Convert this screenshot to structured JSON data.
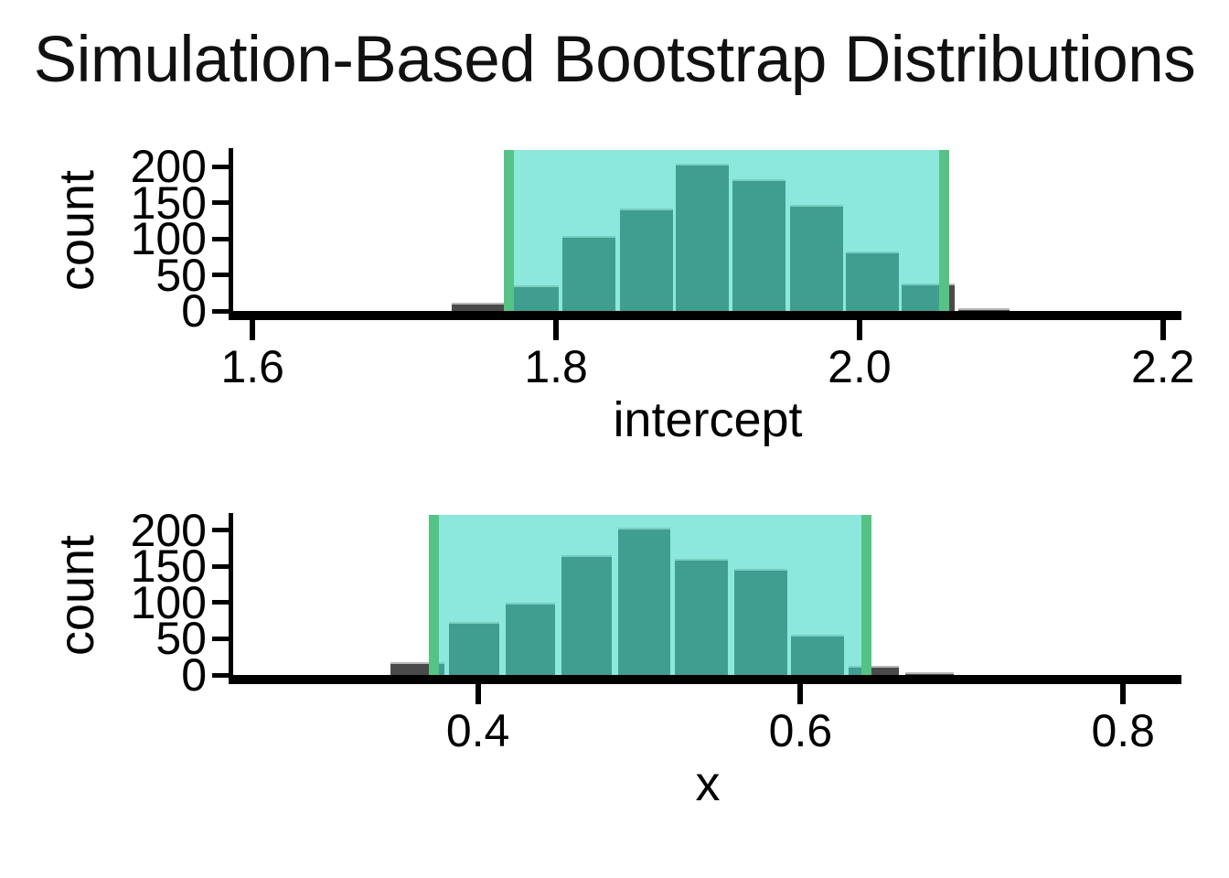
{
  "title": "Simulation-Based Bootstrap Distributions",
  "colors": {
    "bar_gray": "#4a4a4a",
    "bar_border_gray": "#b9b9b9",
    "bar_teal": "#3f9e90",
    "bar_border_teal": "#79cdbf",
    "ci_shade": "#8ce8dc",
    "ci_line_green": "#56c386",
    "axis_black": "#000000"
  },
  "chart_data": [
    {
      "type": "bar",
      "variable": "intercept",
      "xlabel": "intercept",
      "ylabel": "count",
      "xlim": [
        1.589,
        2.211
      ],
      "ylim": [
        0,
        223
      ],
      "grid": false,
      "legend": false,
      "x_ticks": [
        {
          "v": 1.6,
          "label": "1.6"
        },
        {
          "v": 1.8,
          "label": "1.8"
        },
        {
          "v": 2.0,
          "label": "2.0"
        },
        {
          "v": 2.2,
          "label": "2.2"
        }
      ],
      "y_ticks": [
        {
          "v": 0,
          "label": "0"
        },
        {
          "v": 50,
          "label": "50"
        },
        {
          "v": 100,
          "label": "100"
        },
        {
          "v": 150,
          "label": "150"
        },
        {
          "v": 200,
          "label": "200"
        }
      ],
      "bins": [
        {
          "x0": 1.731,
          "x1": 1.766,
          "count": 12
        },
        {
          "x0": 1.767,
          "x1": 1.802,
          "count": 35
        },
        {
          "x0": 1.804,
          "x1": 1.839,
          "count": 104
        },
        {
          "x0": 1.842,
          "x1": 1.877,
          "count": 142
        },
        {
          "x0": 1.879,
          "x1": 1.914,
          "count": 204
        },
        {
          "x0": 1.916,
          "x1": 1.951,
          "count": 182
        },
        {
          "x0": 1.954,
          "x1": 1.989,
          "count": 147
        },
        {
          "x0": 1.991,
          "x1": 2.026,
          "count": 82
        },
        {
          "x0": 2.028,
          "x1": 2.063,
          "count": 38
        },
        {
          "x0": 2.065,
          "x1": 2.099,
          "count": 3
        }
      ],
      "confidence_interval": [
        1.769,
        2.056
      ]
    },
    {
      "type": "bar",
      "variable": "x",
      "xlabel": "x",
      "ylabel": "count",
      "xlim": [
        0.25,
        0.835
      ],
      "ylim": [
        0,
        221
      ],
      "grid": false,
      "legend": false,
      "x_ticks": [
        {
          "v": 0.4,
          "label": "0.4"
        },
        {
          "v": 0.6,
          "label": "0.6"
        },
        {
          "v": 0.8,
          "label": "0.8"
        }
      ],
      "y_ticks": [
        {
          "v": 0,
          "label": "0"
        },
        {
          "v": 50,
          "label": "50"
        },
        {
          "v": 100,
          "label": "100"
        },
        {
          "v": 150,
          "label": "150"
        },
        {
          "v": 200,
          "label": "200"
        }
      ],
      "bins": [
        {
          "x0": 0.346,
          "x1": 0.379,
          "count": 18
        },
        {
          "x0": 0.382,
          "x1": 0.413,
          "count": 73
        },
        {
          "x0": 0.417,
          "x1": 0.448,
          "count": 100
        },
        {
          "x0": 0.452,
          "x1": 0.483,
          "count": 165
        },
        {
          "x0": 0.487,
          "x1": 0.519,
          "count": 203
        },
        {
          "x0": 0.522,
          "x1": 0.555,
          "count": 161
        },
        {
          "x0": 0.559,
          "x1": 0.592,
          "count": 146
        },
        {
          "x0": 0.594,
          "x1": 0.627,
          "count": 56
        },
        {
          "x0": 0.63,
          "x1": 0.661,
          "count": 12
        },
        {
          "x0": 0.665,
          "x1": 0.695,
          "count": 3
        }
      ],
      "confidence_interval": [
        0.373,
        0.641
      ]
    }
  ]
}
